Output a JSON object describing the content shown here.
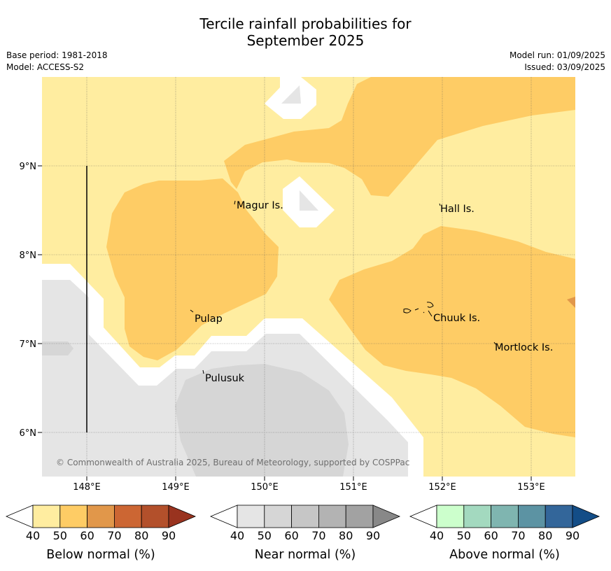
{
  "title_line1": "Tercile rainfall probabilities for",
  "title_line2": "September 2025",
  "meta_left": [
    "Base period: 1981-2018",
    "Model: ACCESS-S2"
  ],
  "meta_right": [
    "Model run: 01/09/2025",
    "Issued: 03/09/2025"
  ],
  "x_ticks": [
    "148°E",
    "149°E",
    "150°E",
    "151°E",
    "152°E",
    "153°E"
  ],
  "y_ticks": [
    "9°N",
    "8°N",
    "7°N",
    "6°N"
  ],
  "places": [
    "Magur Is.",
    "Hall Is.",
    "Pulap",
    "Chuuk Is.",
    "Mortlock Is.",
    "Pulusuk"
  ],
  "copyright": "© Commonwealth of Australia 2025, Bureau of Meteorology, supported by COSPPac",
  "colorbars": [
    {
      "title": "Below normal (%)",
      "ticks": [
        "40",
        "50",
        "60",
        "70",
        "80",
        "90"
      ],
      "colors": [
        "#ffeda0",
        "#fecc65",
        "#e1974a",
        "#cc6633",
        "#b3502b",
        "#99331f"
      ]
    },
    {
      "title": "Near normal (%)",
      "ticks": [
        "40",
        "50",
        "60",
        "70",
        "80",
        "90"
      ],
      "colors": [
        "#e5e5e5",
        "#d6d6d6",
        "#c6c6c6",
        "#b3b3b3",
        "#a2a2a2",
        "#888888"
      ]
    },
    {
      "title": "Above normal (%)",
      "ticks": [
        "40",
        "50",
        "60",
        "70",
        "80",
        "90"
      ],
      "colors": [
        "#ccffcc",
        "#a3d9bf",
        "#7fb5b0",
        "#5c93a3",
        "#33669a",
        "#134d87"
      ]
    }
  ],
  "map_colors": {
    "below_40_50": "#ffeda0",
    "below_50_60": "#fecc65",
    "below_60_70": "#e1974a",
    "near_40_50": "#e5e5e5",
    "near_50_60": "#d6d6d6"
  }
}
